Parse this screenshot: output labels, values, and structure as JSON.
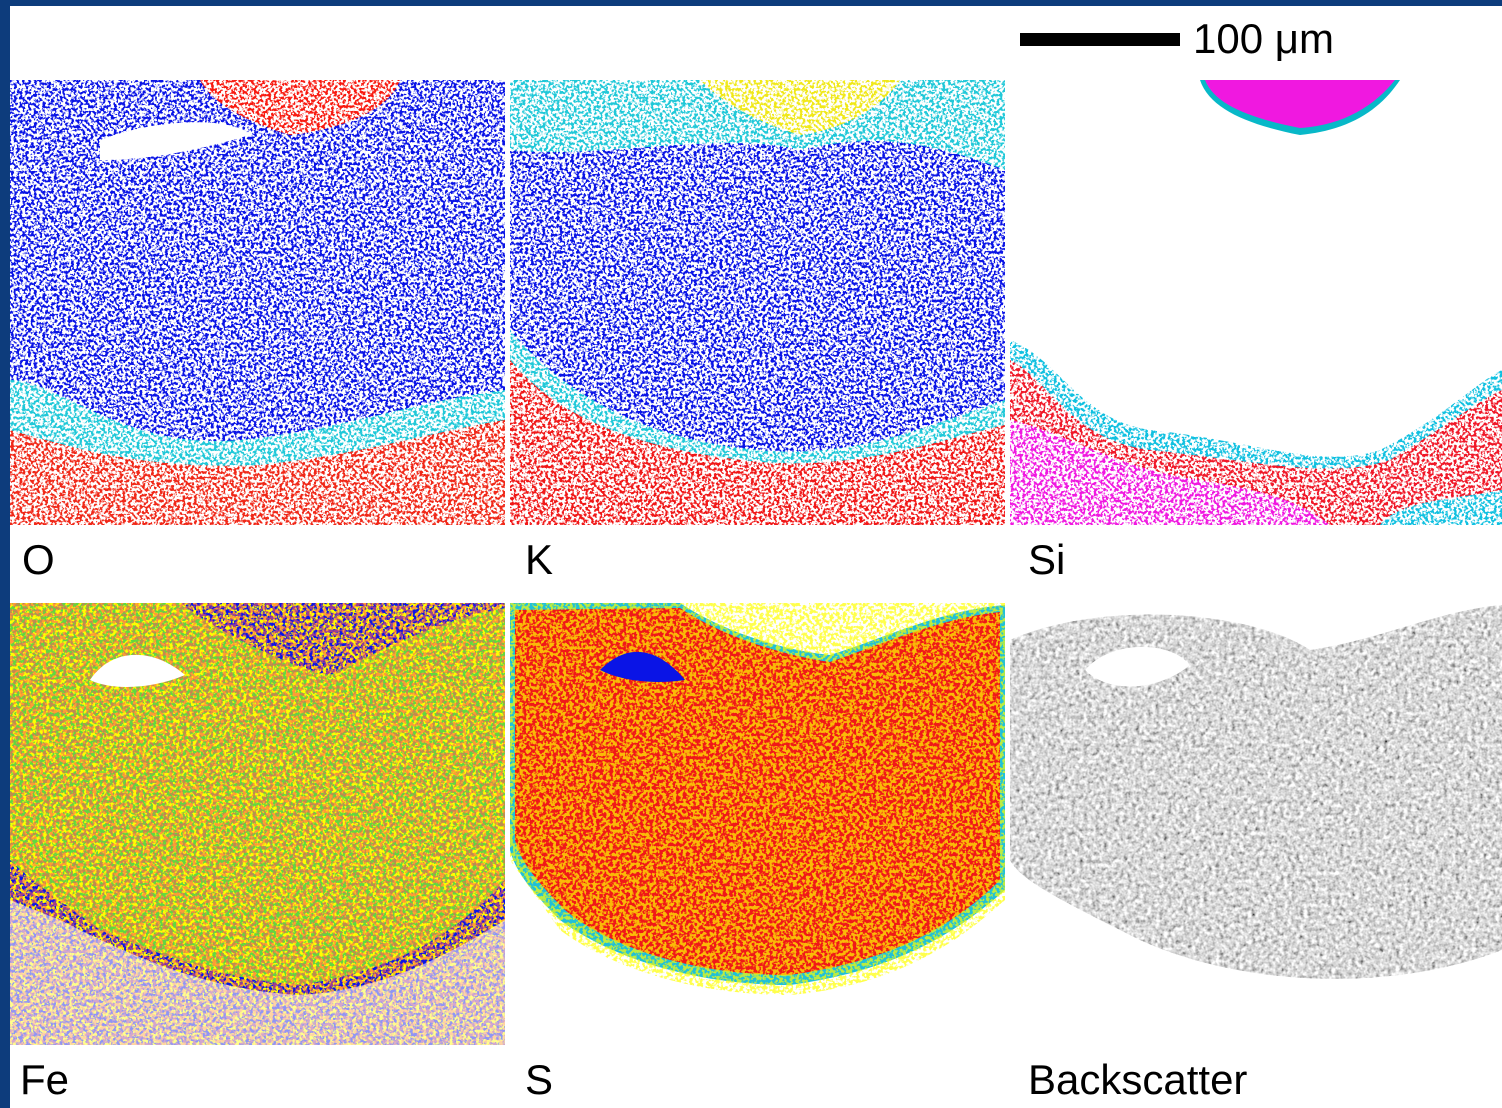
{
  "scale_bar": {
    "label": "100 μm"
  },
  "panels": [
    {
      "label": "O"
    },
    {
      "label": "K"
    },
    {
      "label": "Si"
    },
    {
      "label": "Fe"
    },
    {
      "label": "S"
    },
    {
      "label": "Backscatter"
    }
  ]
}
